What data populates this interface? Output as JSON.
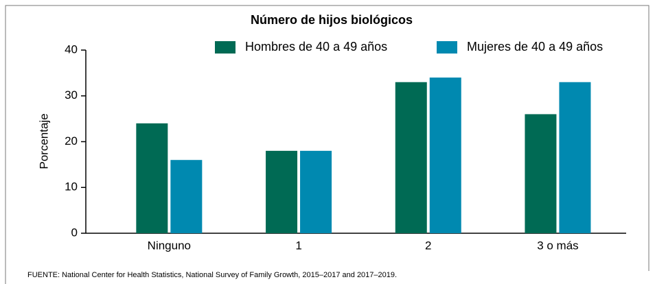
{
  "chart_data": {
    "type": "bar",
    "title": "Número de hijos biológicos",
    "y_label": "Porcentaje",
    "categories": [
      "Ninguno",
      "1",
      "2",
      "3 o más"
    ],
    "series": [
      {
        "name": "Hombres de 40 a 49 años",
        "color": "#006a54",
        "values": [
          24,
          18,
          33,
          26
        ]
      },
      {
        "name": "Mujeres de 40 a 49 años",
        "color": "#0089b0",
        "values": [
          16,
          18,
          34,
          33
        ]
      }
    ],
    "ylim": [
      0,
      40
    ],
    "yticks": [
      0,
      10,
      20,
      30,
      40
    ],
    "source": "FUENTE: National Center for Health Statistics, National Survey of Family Growth, 2015–2017 and 2017–2019."
  }
}
